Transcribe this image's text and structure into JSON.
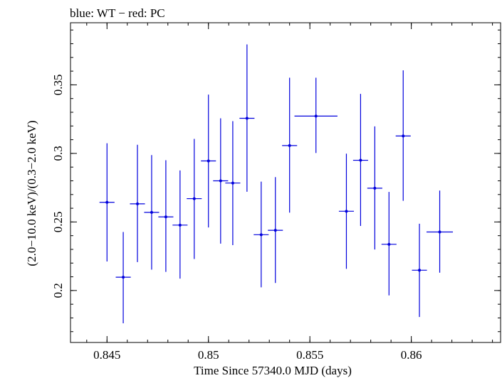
{
  "chart_data": {
    "type": "scatter",
    "title": "blue: WT − red: PC",
    "xlabel": "Time Since 57340.0 MJD (days)",
    "ylabel": "(2.0−10.0 keV)/(0.3−2.0 keV)",
    "xlim": [
      0.8432,
      0.8644
    ],
    "ylim": [
      0.1621,
      0.3953
    ],
    "x_ticks": [
      0.845,
      0.85,
      0.855,
      0.86
    ],
    "x_tick_labels": [
      "0.845",
      "0.85",
      "0.855",
      "0.86"
    ],
    "y_ticks": [
      0.2,
      0.25,
      0.3,
      0.35
    ],
    "y_tick_labels": [
      "0.2",
      "0.25",
      "0.3",
      "0.35"
    ],
    "grid": false,
    "legend": "none",
    "series": [
      {
        "color": "#0000dd",
        "points": [
          {
            "x": 0.845,
            "xerr": 0.00037,
            "y": 0.2643,
            "ylo": 0.2212,
            "yhi": 0.3074
          },
          {
            "x": 0.8458,
            "xerr": 0.00037,
            "y": 0.2097,
            "ylo": 0.1761,
            "yhi": 0.2427
          },
          {
            "x": 0.8465,
            "xerr": 0.00037,
            "y": 0.2632,
            "ylo": 0.2207,
            "yhi": 0.3063
          },
          {
            "x": 0.8472,
            "xerr": 0.00037,
            "y": 0.257,
            "ylo": 0.2152,
            "yhi": 0.2988
          },
          {
            "x": 0.8479,
            "xerr": 0.00037,
            "y": 0.2537,
            "ylo": 0.2136,
            "yhi": 0.295
          },
          {
            "x": 0.8486,
            "xerr": 0.00037,
            "y": 0.2477,
            "ylo": 0.2087,
            "yhi": 0.2876
          },
          {
            "x": 0.8493,
            "xerr": 0.00037,
            "y": 0.267,
            "ylo": 0.223,
            "yhi": 0.3106
          },
          {
            "x": 0.85,
            "xerr": 0.00037,
            "y": 0.2945,
            "ylo": 0.246,
            "yhi": 0.3429
          },
          {
            "x": 0.8506,
            "xerr": 0.00037,
            "y": 0.28,
            "ylo": 0.2342,
            "yhi": 0.3256
          },
          {
            "x": 0.8512,
            "xerr": 0.00037,
            "y": 0.2784,
            "ylo": 0.2331,
            "yhi": 0.3235
          },
          {
            "x": 0.8519,
            "xerr": 0.00037,
            "y": 0.3256,
            "ylo": 0.272,
            "yhi": 0.3795
          },
          {
            "x": 0.8526,
            "xerr": 0.00037,
            "y": 0.2407,
            "ylo": 0.2023,
            "yhi": 0.2794
          },
          {
            "x": 0.8533,
            "xerr": 0.00037,
            "y": 0.2439,
            "ylo": 0.2055,
            "yhi": 0.2827
          },
          {
            "x": 0.854,
            "xerr": 0.00037,
            "y": 0.3057,
            "ylo": 0.2568,
            "yhi": 0.3552
          },
          {
            "x": 0.8553,
            "xerr": 0.00106,
            "y": 0.3272,
            "ylo": 0.3003,
            "yhi": 0.3552
          },
          {
            "x": 0.8568,
            "xerr": 0.00037,
            "y": 0.2578,
            "ylo": 0.2158,
            "yhi": 0.2998
          },
          {
            "x": 0.8575,
            "xerr": 0.00037,
            "y": 0.295,
            "ylo": 0.2471,
            "yhi": 0.3434
          },
          {
            "x": 0.8582,
            "xerr": 0.00037,
            "y": 0.2746,
            "ylo": 0.2299,
            "yhi": 0.3197
          },
          {
            "x": 0.8589,
            "xerr": 0.00037,
            "y": 0.2337,
            "ylo": 0.1964,
            "yhi": 0.2719
          },
          {
            "x": 0.8596,
            "xerr": 0.00037,
            "y": 0.3127,
            "ylo": 0.2654,
            "yhi": 0.3606
          },
          {
            "x": 0.8604,
            "xerr": 0.00037,
            "y": 0.2148,
            "ylo": 0.1807,
            "yhi": 0.2487
          },
          {
            "x": 0.8614,
            "xerr": 0.00065,
            "y": 0.2427,
            "ylo": 0.213,
            "yhi": 0.2729
          }
        ]
      }
    ]
  }
}
